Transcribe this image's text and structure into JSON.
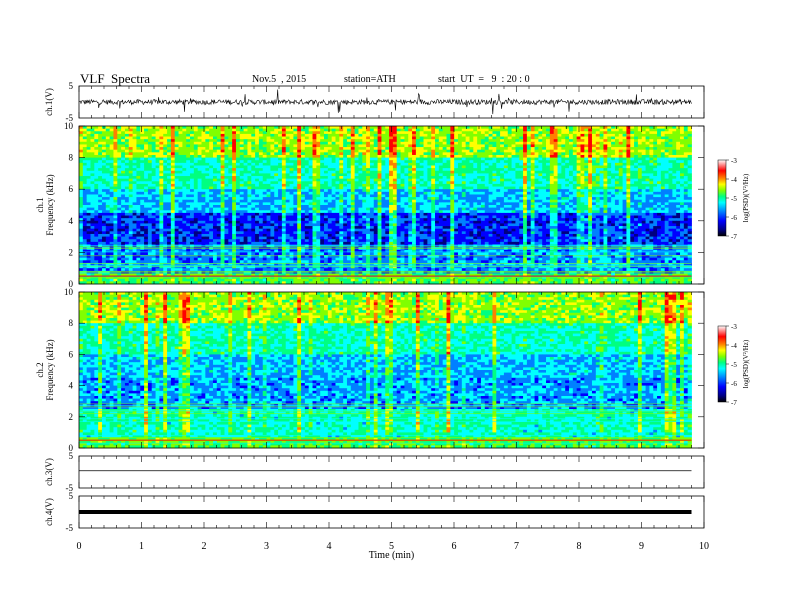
{
  "header": {
    "title": "VLF  Spectra",
    "date": "Nov.5  , 2015",
    "station": "station=ATH",
    "start": "start  UT  =   9  : 20 : 0"
  },
  "chart_data": [
    {
      "type": "line",
      "panel": "ch1-waveform",
      "ylabel": "ch.1(V)",
      "yticks": [
        "5",
        "-5"
      ],
      "ylim": [
        -5,
        5
      ],
      "xlim": [
        0,
        10
      ],
      "description_values": {
        "baseline": 0,
        "noise_amplitude": 1
      }
    },
    {
      "type": "heatmap",
      "panel": "ch1-spectrogram",
      "ylabel": "ch.1\nFrequency  (kHz)",
      "ylabel_lines": [
        "ch.1",
        "Frequency  (kHz)"
      ],
      "yticks": [
        "0",
        "2",
        "4",
        "6",
        "8",
        "10"
      ],
      "ylim": [
        0,
        10
      ],
      "xlim": [
        0,
        9.8
      ],
      "colorbar": {
        "label": "log(PSD)(V²/Hz)",
        "ticks": [
          "-3",
          "-4",
          "-5",
          "-6",
          "-7"
        ],
        "range": [
          -7,
          -3
        ]
      }
    },
    {
      "type": "heatmap",
      "panel": "ch2-spectrogram",
      "ylabel_lines": [
        "ch.2",
        "Frequency  (kHz)"
      ],
      "yticks": [
        "0",
        "2",
        "4",
        "6",
        "8",
        "10"
      ],
      "ylim": [
        0,
        10
      ],
      "xlim": [
        0,
        9.8
      ],
      "colorbar": {
        "label": "log(PSD)(V²/Hz)",
        "ticks": [
          "-3",
          "-4",
          "-5",
          "-6",
          "-7"
        ],
        "range": [
          -7,
          -3
        ]
      }
    },
    {
      "type": "line",
      "panel": "ch3-waveform",
      "ylabel": "ch.3(V)",
      "yticks": [
        "5",
        "-5"
      ],
      "ylim": [
        -5,
        5
      ],
      "xlim": [
        0,
        10
      ],
      "description_values": {
        "baseline": 0
      }
    },
    {
      "type": "line",
      "panel": "ch4-waveform",
      "ylabel": "ch.4(V)",
      "yticks": [
        "5",
        "-5"
      ],
      "ylim": [
        -5,
        5
      ],
      "xlim": [
        0,
        10
      ],
      "description_values": {
        "baseline": 0
      }
    }
  ],
  "xaxis": {
    "label": "Time  (min)",
    "ticks": [
      "0",
      "1",
      "2",
      "3",
      "4",
      "5",
      "6",
      "7",
      "8",
      "9",
      "10"
    ]
  },
  "colors": {
    "colormap": [
      "#000080",
      "#0000ff",
      "#0080ff",
      "#00ffff",
      "#00ff80",
      "#80ff00",
      "#ffff00",
      "#ff8000",
      "#ff0000",
      "#ffffff"
    ]
  }
}
